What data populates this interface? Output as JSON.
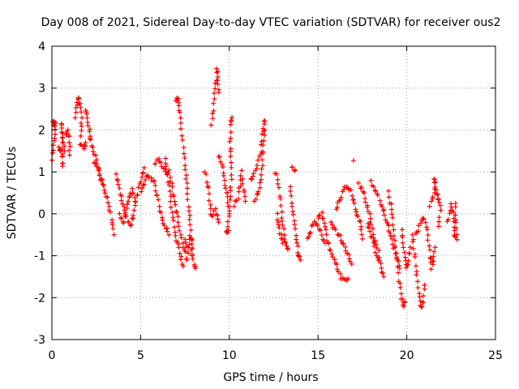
{
  "chart_data": {
    "type": "scatter",
    "title": "Day 008 of 2021, Sidereal Day-to-day VTEC variation (SDTVAR) for receiver ous2",
    "xlabel": "GPS time / hours",
    "ylabel": "SDTVAR / TECUs",
    "xlim": [
      0,
      25
    ],
    "ylim": [
      -3,
      4
    ],
    "x_ticks": [
      0,
      5,
      10,
      15,
      20,
      25
    ],
    "y_ticks": [
      -3,
      -2,
      -1,
      0,
      1,
      2,
      3,
      4
    ],
    "grid": true,
    "marker": "+",
    "color": "#ff0000",
    "series": [
      {
        "name": "SDTVAR",
        "tracks": [
          [
            [
              0.0,
              1.3
            ],
            [
              0.1,
              1.6
            ],
            [
              0.2,
              2.15
            ],
            [
              0.15,
              2.1
            ],
            [
              0.05,
              2.2
            ]
          ],
          [
            [
              0.4,
              1.6
            ],
            [
              0.5,
              1.5
            ],
            [
              0.6,
              1.1
            ],
            [
              0.55,
              2.2
            ],
            [
              0.7,
              1.5
            ]
          ],
          [
            [
              0.8,
              1.85
            ],
            [
              0.9,
              2.0
            ],
            [
              1.0,
              1.7
            ],
            [
              1.0,
              1.4
            ]
          ],
          [
            [
              1.3,
              2.3
            ],
            [
              1.4,
              2.6
            ],
            [
              1.5,
              2.75
            ],
            [
              1.6,
              2.6
            ],
            [
              1.7,
              2.3
            ],
            [
              1.6,
              1.7
            ],
            [
              1.8,
              1.55
            ],
            [
              1.9,
              1.7
            ]
          ],
          [
            [
              1.9,
              2.5
            ],
            [
              2.0,
              2.3
            ],
            [
              2.1,
              2.0
            ],
            [
              2.15,
              1.8
            ],
            [
              2.3,
              1.6
            ],
            [
              2.5,
              1.3
            ],
            [
              2.7,
              0.9
            ],
            [
              2.9,
              0.7
            ]
          ],
          [
            [
              2.4,
              1.2
            ],
            [
              2.6,
              1.1
            ],
            [
              2.8,
              0.8
            ],
            [
              3.0,
              0.5
            ],
            [
              3.2,
              0.2
            ],
            [
              3.4,
              -0.2
            ],
            [
              3.5,
              -0.5
            ]
          ],
          [
            [
              3.6,
              0.9
            ],
            [
              3.8,
              0.6
            ],
            [
              4.0,
              0.2
            ],
            [
              4.2,
              -0.1
            ],
            [
              4.4,
              -0.3
            ],
            [
              4.6,
              0.0
            ],
            [
              4.8,
              0.4
            ],
            [
              5.0,
              0.8
            ],
            [
              5.2,
              1.1
            ]
          ],
          [
            [
              3.8,
              0.0
            ],
            [
              4.0,
              -0.25
            ],
            [
              4.3,
              0.3
            ],
            [
              4.5,
              0.6
            ],
            [
              4.7,
              0.3
            ]
          ],
          [
            [
              5.0,
              0.5
            ],
            [
              5.3,
              0.9
            ],
            [
              5.5,
              0.9
            ],
            [
              5.7,
              0.8
            ],
            [
              5.9,
              0.5
            ],
            [
              6.1,
              0.1
            ],
            [
              6.3,
              -0.2
            ],
            [
              6.6,
              -0.5
            ]
          ],
          [
            [
              5.8,
              1.2
            ],
            [
              6.0,
              1.3
            ],
            [
              6.3,
              1.1
            ],
            [
              6.6,
              1.0
            ],
            [
              6.8,
              0.6
            ],
            [
              7.0,
              0.1
            ],
            [
              7.2,
              -0.4
            ],
            [
              7.4,
              -0.8
            ],
            [
              7.6,
              -1.1
            ]
          ],
          [
            [
              6.4,
              1.3
            ],
            [
              6.5,
              1.0
            ],
            [
              6.6,
              0.7
            ],
            [
              6.7,
              0.3
            ],
            [
              6.8,
              -0.1
            ],
            [
              7.0,
              -0.6
            ],
            [
              7.2,
              -0.9
            ],
            [
              7.4,
              -1.25
            ]
          ],
          [
            [
              7.0,
              2.7
            ],
            [
              7.1,
              2.8
            ],
            [
              7.2,
              2.5
            ],
            [
              7.3,
              2.0
            ],
            [
              7.4,
              1.6
            ],
            [
              7.5,
              1.2
            ],
            [
              7.6,
              0.7
            ],
            [
              7.7,
              0.2
            ],
            [
              7.8,
              -0.3
            ],
            [
              7.9,
              -0.8
            ],
            [
              8.0,
              -1.2
            ],
            [
              8.1,
              -1.3
            ]
          ],
          [
            [
              7.5,
              -0.6
            ],
            [
              7.7,
              -0.9
            ],
            [
              7.8,
              -0.5
            ],
            [
              7.9,
              -1.0
            ]
          ],
          [
            [
              8.6,
              1.0
            ],
            [
              8.8,
              0.6
            ],
            [
              8.9,
              0.2
            ],
            [
              9.0,
              -0.1
            ],
            [
              9.2,
              0.1
            ],
            [
              9.4,
              -0.2
            ]
          ],
          [
            [
              9.0,
              2.1
            ],
            [
              9.1,
              2.5
            ],
            [
              9.2,
              3.0
            ],
            [
              9.3,
              3.45
            ],
            [
              9.35,
              3.2
            ],
            [
              9.4,
              2.9
            ]
          ],
          [
            [
              9.8,
              -0.4
            ],
            [
              9.9,
              -0.5
            ],
            [
              10.0,
              0.2
            ],
            [
              10.1,
              0.8
            ],
            [
              10.05,
              1.6
            ],
            [
              10.1,
              2.1
            ],
            [
              10.15,
              2.3
            ]
          ],
          [
            [
              9.4,
              1.4
            ],
            [
              9.6,
              1.2
            ],
            [
              9.7,
              0.9
            ],
            [
              9.8,
              0.6
            ],
            [
              9.9,
              0.4
            ],
            [
              10.0,
              0.0
            ]
          ],
          [
            [
              10.3,
              0.2
            ],
            [
              10.5,
              0.4
            ],
            [
              10.6,
              0.7
            ],
            [
              10.7,
              1.0
            ],
            [
              10.8,
              0.6
            ],
            [
              10.9,
              0.3
            ]
          ],
          [
            [
              11.2,
              0.8
            ],
            [
              11.4,
              1.0
            ],
            [
              11.6,
              1.2
            ],
            [
              11.8,
              1.5
            ],
            [
              11.9,
              2.0
            ],
            [
              12.0,
              2.25
            ],
            [
              11.8,
              0.8
            ],
            [
              11.6,
              0.5
            ],
            [
              11.4,
              0.3
            ]
          ],
          [
            [
              12.6,
              1.0
            ],
            [
              12.8,
              0.6
            ],
            [
              12.9,
              0.2
            ],
            [
              13.0,
              -0.2
            ],
            [
              13.1,
              -0.5
            ],
            [
              13.2,
              -0.7
            ],
            [
              13.3,
              -0.85
            ]
          ],
          [
            [
              12.7,
              0.0
            ],
            [
              12.8,
              -0.3
            ],
            [
              12.9,
              -0.5
            ],
            [
              13.0,
              -0.7
            ]
          ],
          [
            [
              13.4,
              0.6
            ],
            [
              13.5,
              0.3
            ],
            [
              13.6,
              0.0
            ],
            [
              13.7,
              -0.4
            ],
            [
              13.8,
              -0.7
            ],
            [
              13.9,
              -1.0
            ],
            [
              14.0,
              -1.1
            ]
          ],
          [
            [
              13.5,
              1.1
            ],
            [
              13.7,
              1.05
            ]
          ],
          [
            [
              14.4,
              -0.6
            ],
            [
              14.6,
              -0.4
            ],
            [
              14.8,
              -0.2
            ],
            [
              15.0,
              -0.3
            ],
            [
              15.2,
              -0.5
            ],
            [
              15.4,
              -0.7
            ]
          ],
          [
            [
              15.0,
              -0.1
            ],
            [
              15.2,
              0.0
            ],
            [
              15.4,
              -0.3
            ],
            [
              15.5,
              -0.6
            ],
            [
              15.7,
              -0.9
            ],
            [
              15.9,
              -1.1
            ],
            [
              16.1,
              -1.3
            ],
            [
              16.3,
              -1.5
            ],
            [
              16.5,
              -1.6
            ],
            [
              16.7,
              -1.55
            ]
          ],
          [
            [
              16.0,
              0.1
            ],
            [
              16.2,
              0.3
            ],
            [
              16.4,
              0.5
            ],
            [
              16.6,
              0.65
            ],
            [
              16.8,
              0.6
            ],
            [
              17.0,
              0.3
            ],
            [
              17.2,
              0.0
            ],
            [
              17.4,
              -0.3
            ],
            [
              17.5,
              -0.6
            ]
          ],
          [
            [
              15.7,
              -0.2
            ],
            [
              16.0,
              -0.4
            ],
            [
              16.3,
              -0.6
            ],
            [
              16.5,
              -0.8
            ],
            [
              16.7,
              -1.0
            ],
            [
              16.9,
              -1.2
            ]
          ],
          [
            [
              17.0,
              1.27
            ]
          ],
          [
            [
              17.3,
              0.7
            ],
            [
              17.5,
              0.55
            ],
            [
              17.7,
              0.3
            ],
            [
              17.9,
              0.0
            ],
            [
              18.0,
              -0.3
            ],
            [
              18.2,
              -0.6
            ],
            [
              18.4,
              -0.9
            ],
            [
              18.5,
              -1.2
            ],
            [
              18.7,
              -1.5
            ]
          ],
          [
            [
              18.0,
              0.75
            ],
            [
              18.2,
              0.6
            ],
            [
              18.4,
              0.4
            ],
            [
              18.6,
              0.2
            ],
            [
              18.8,
              -0.1
            ],
            [
              19.0,
              -0.4
            ],
            [
              19.2,
              -0.7
            ],
            [
              19.4,
              -1.0
            ],
            [
              19.6,
              -1.3
            ]
          ],
          [
            [
              17.8,
              -0.2
            ],
            [
              18.0,
              -0.5
            ],
            [
              18.2,
              -0.8
            ],
            [
              18.4,
              -1.1
            ]
          ],
          [
            [
              19.0,
              0.5
            ],
            [
              19.1,
              0.2
            ],
            [
              19.2,
              -0.1
            ],
            [
              19.3,
              -0.5
            ],
            [
              19.4,
              -0.9
            ],
            [
              19.5,
              -1.3
            ],
            [
              19.6,
              -1.7
            ],
            [
              19.7,
              -2.0
            ],
            [
              19.8,
              -2.2
            ],
            [
              19.9,
              -2.1
            ]
          ],
          [
            [
              19.7,
              -0.4
            ],
            [
              19.8,
              -0.7
            ],
            [
              19.9,
              -1.0
            ],
            [
              20.0,
              -1.3
            ],
            [
              20.1,
              -1.1
            ],
            [
              20.2,
              -0.8
            ]
          ],
          [
            [
              20.3,
              -0.5
            ],
            [
              20.4,
              -0.8
            ],
            [
              20.5,
              -1.2
            ],
            [
              20.6,
              -1.6
            ],
            [
              20.7,
              -2.0
            ],
            [
              20.8,
              -2.2
            ],
            [
              20.9,
              -2.1
            ],
            [
              21.0,
              -1.7
            ]
          ],
          [
            [
              20.5,
              -0.5
            ],
            [
              20.7,
              -0.3
            ],
            [
              20.9,
              -0.1
            ],
            [
              21.1,
              -0.3
            ],
            [
              21.2,
              -0.6
            ],
            [
              21.3,
              -1.0
            ],
            [
              21.4,
              -1.3
            ],
            [
              21.5,
              -1.1
            ],
            [
              21.6,
              -0.8
            ]
          ],
          [
            [
              21.3,
              0.2
            ],
            [
              21.5,
              0.4
            ],
            [
              21.6,
              0.75
            ],
            [
              21.5,
              0.8
            ],
            [
              21.7,
              0.5
            ],
            [
              21.8,
              0.3
            ],
            [
              21.9,
              0.1
            ],
            [
              21.8,
              -0.3
            ]
          ],
          [
            [
              22.3,
              -0.2
            ],
            [
              22.5,
              0.2
            ],
            [
              22.6,
              0.05
            ],
            [
              22.7,
              -0.5
            ],
            [
              22.8,
              -0.6
            ],
            [
              22.75,
              0.25
            ]
          ]
        ]
      }
    ]
  }
}
